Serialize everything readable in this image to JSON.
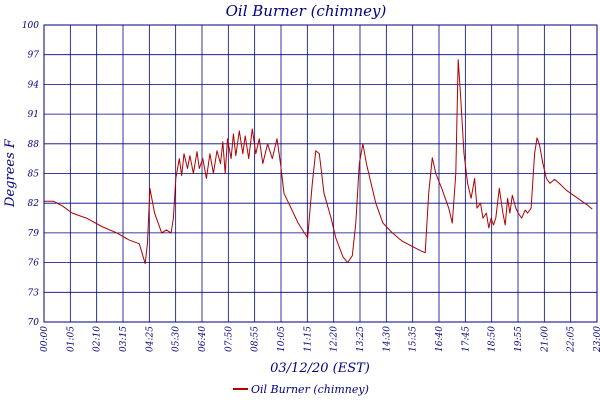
{
  "chart_data": {
    "type": "line",
    "title": "Oil Burner (chimney)",
    "xlabel": "03/12/20 (EST)",
    "ylabel": "Degrees F",
    "y_tick_labels": [
      "100",
      "97",
      "94",
      "91",
      "88",
      "85",
      "82",
      "79",
      "76",
      "73",
      "70"
    ],
    "ylim": [
      70,
      100
    ],
    "x_tick_labels": [
      "00:00",
      "01:05",
      "02:10",
      "03:15",
      "04:25",
      "05:30",
      "06:40",
      "07:50",
      "08:55",
      "10:05",
      "11:15",
      "12:20",
      "13:25",
      "14:30",
      "15:35",
      "16:40",
      "17:45",
      "18:50",
      "19:55",
      "21:00",
      "22:05",
      "23:00"
    ],
    "grid": true,
    "legend_position": "bottom-center",
    "series": [
      {
        "name": "Oil Burner (chimney)",
        "color": "#b00000",
        "points": [
          [
            0.0,
            82.2
          ],
          [
            0.4,
            82.2
          ],
          [
            0.8,
            81.7
          ],
          [
            1.2,
            81.0
          ],
          [
            1.8,
            80.5
          ],
          [
            2.5,
            79.6
          ],
          [
            3.1,
            79.0
          ],
          [
            3.6,
            78.3
          ],
          [
            4.05,
            77.9
          ],
          [
            4.3,
            75.9
          ],
          [
            4.4,
            78.0
          ],
          [
            4.5,
            83.5
          ],
          [
            4.7,
            81.0
          ],
          [
            5.0,
            79.0
          ],
          [
            5.2,
            79.3
          ],
          [
            5.4,
            79.0
          ],
          [
            5.5,
            80.5
          ],
          [
            5.6,
            84.5
          ],
          [
            5.75,
            86.5
          ],
          [
            5.85,
            84.8
          ],
          [
            5.95,
            87.0
          ],
          [
            6.1,
            85.5
          ],
          [
            6.2,
            86.8
          ],
          [
            6.35,
            85.0
          ],
          [
            6.5,
            87.2
          ],
          [
            6.6,
            85.5
          ],
          [
            6.75,
            86.5
          ],
          [
            6.9,
            84.5
          ],
          [
            7.05,
            87.0
          ],
          [
            7.2,
            85.0
          ],
          [
            7.35,
            87.3
          ],
          [
            7.5,
            86.0
          ],
          [
            7.6,
            88.2
          ],
          [
            7.7,
            85.0
          ],
          [
            7.8,
            88.5
          ],
          [
            7.95,
            86.5
          ],
          [
            8.05,
            89.0
          ],
          [
            8.15,
            86.8
          ],
          [
            8.3,
            89.3
          ],
          [
            8.45,
            87.0
          ],
          [
            8.55,
            88.8
          ],
          [
            8.7,
            86.5
          ],
          [
            8.85,
            89.5
          ],
          [
            9.0,
            87.0
          ],
          [
            9.15,
            88.5
          ],
          [
            9.3,
            86.0
          ],
          [
            9.5,
            88.0
          ],
          [
            9.7,
            86.5
          ],
          [
            9.9,
            88.5
          ],
          [
            10.05,
            86.0
          ],
          [
            10.2,
            83.0
          ],
          [
            10.4,
            82.0
          ],
          [
            10.8,
            80.0
          ],
          [
            11.2,
            78.5
          ],
          [
            11.4,
            84.0
          ],
          [
            11.55,
            87.3
          ],
          [
            11.7,
            87.0
          ],
          [
            11.9,
            83.0
          ],
          [
            12.2,
            80.5
          ],
          [
            12.4,
            78.5
          ],
          [
            12.7,
            76.6
          ],
          [
            12.9,
            76.0
          ],
          [
            13.1,
            76.7
          ],
          [
            13.25,
            80.0
          ],
          [
            13.4,
            86.0
          ],
          [
            13.55,
            88.0
          ],
          [
            13.7,
            86.0
          ],
          [
            13.9,
            84.0
          ],
          [
            14.1,
            82.0
          ],
          [
            14.4,
            80.0
          ],
          [
            14.8,
            79.0
          ],
          [
            15.2,
            78.2
          ],
          [
            15.6,
            77.7
          ],
          [
            16.0,
            77.2
          ],
          [
            16.2,
            77.0
          ],
          [
            16.35,
            83.0
          ],
          [
            16.5,
            86.6
          ],
          [
            16.65,
            85.0
          ],
          [
            16.9,
            83.5
          ],
          [
            17.2,
            81.5
          ],
          [
            17.35,
            80.0
          ],
          [
            17.5,
            85.0
          ],
          [
            17.6,
            96.5
          ],
          [
            17.7,
            93.0
          ],
          [
            17.85,
            87.0
          ],
          [
            18.0,
            84.0
          ],
          [
            18.15,
            82.5
          ],
          [
            18.3,
            84.5
          ],
          [
            18.4,
            81.5
          ],
          [
            18.55,
            82.0
          ],
          [
            18.65,
            80.5
          ],
          [
            18.8,
            81.0
          ],
          [
            18.9,
            79.5
          ],
          [
            19.0,
            80.5
          ],
          [
            19.1,
            79.8
          ],
          [
            19.2,
            80.5
          ],
          [
            19.35,
            83.5
          ],
          [
            19.5,
            81.0
          ],
          [
            19.6,
            79.8
          ],
          [
            19.7,
            82.5
          ],
          [
            19.8,
            81.0
          ],
          [
            19.9,
            82.8
          ],
          [
            20.05,
            81.5
          ],
          [
            20.15,
            81.0
          ],
          [
            20.3,
            80.5
          ],
          [
            20.45,
            81.3
          ],
          [
            20.55,
            81.0
          ],
          [
            20.7,
            81.5
          ],
          [
            20.85,
            87.0
          ],
          [
            20.95,
            88.6
          ],
          [
            21.05,
            88.0
          ],
          [
            21.2,
            86.0
          ],
          [
            21.35,
            84.5
          ],
          [
            21.5,
            84.0
          ],
          [
            21.7,
            84.4
          ],
          [
            21.9,
            84.0
          ],
          [
            22.2,
            83.3
          ],
          [
            22.5,
            82.8
          ],
          [
            22.8,
            82.3
          ],
          [
            23.1,
            81.8
          ],
          [
            23.3,
            81.4
          ]
        ]
      }
    ]
  }
}
